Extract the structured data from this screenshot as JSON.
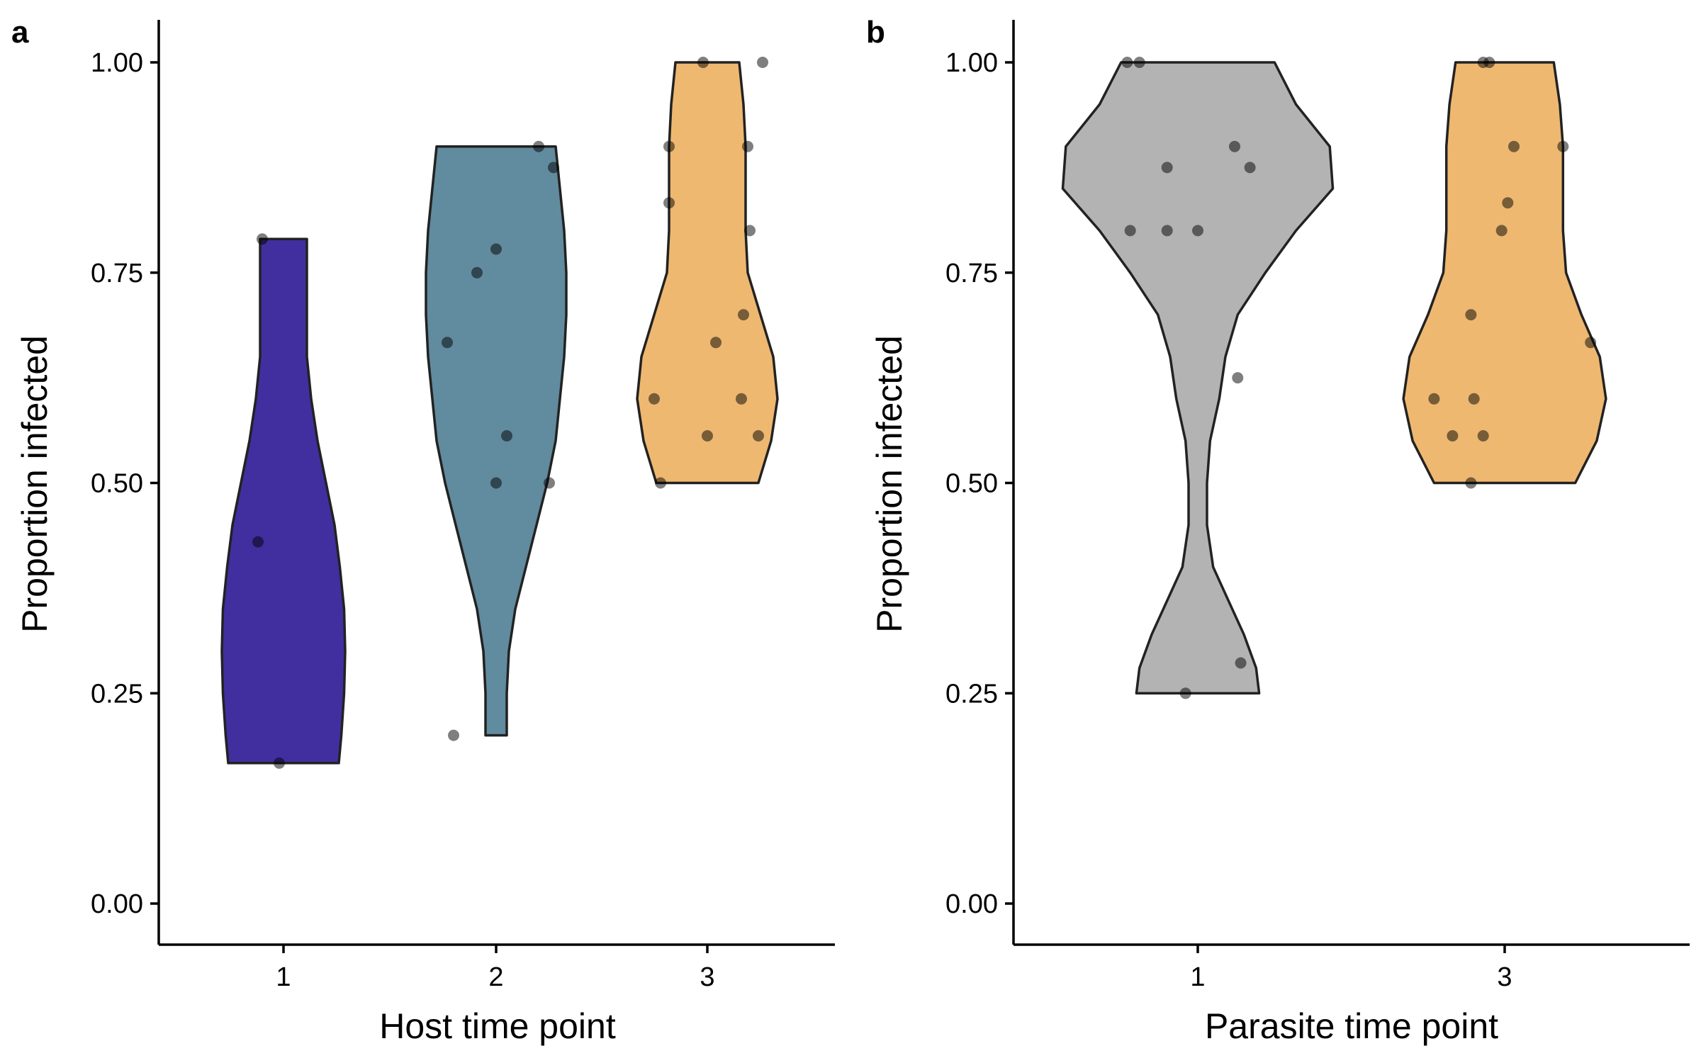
{
  "chart_data": [
    {
      "type": "violin",
      "panel_label": "a",
      "xlabel": "Host time point",
      "ylabel": "Proportion infected",
      "ylim": [
        0,
        1
      ],
      "yticks": [
        "0.00",
        "0.25",
        "0.50",
        "0.75",
        "1.00"
      ],
      "categories": [
        "1",
        "2",
        "3"
      ],
      "colors": [
        "#412fa0",
        "#618b9e",
        "#eeb871"
      ],
      "grid": false,
      "legend": "none",
      "groups": [
        {
          "category": "1",
          "values": [
            0.79,
            0.43,
            0.167
          ],
          "jitter": [
            -0.1,
            -0.12,
            -0.02
          ],
          "violin_profile": [
            [
              0.167,
              0.26
            ],
            [
              0.2,
              0.272
            ],
            [
              0.25,
              0.285
            ],
            [
              0.3,
              0.29
            ],
            [
              0.35,
              0.285
            ],
            [
              0.4,
              0.265
            ],
            [
              0.45,
              0.24
            ],
            [
              0.5,
              0.2
            ],
            [
              0.55,
              0.16
            ],
            [
              0.6,
              0.13
            ],
            [
              0.65,
              0.11
            ],
            [
              0.7,
              0.11
            ],
            [
              0.75,
              0.11
            ],
            [
              0.79,
              0.11
            ]
          ]
        },
        {
          "category": "2",
          "values": [
            0.9,
            0.875,
            0.778,
            0.75,
            0.667,
            0.556,
            0.5,
            0.5,
            0.2
          ],
          "jitter": [
            0.2,
            0.27,
            0.0,
            -0.09,
            -0.23,
            0.05,
            0.0,
            0.25,
            -0.2
          ],
          "violin_profile": [
            [
              0.2,
              0.05
            ],
            [
              0.25,
              0.05
            ],
            [
              0.3,
              0.06
            ],
            [
              0.35,
              0.09
            ],
            [
              0.4,
              0.14
            ],
            [
              0.45,
              0.19
            ],
            [
              0.5,
              0.24
            ],
            [
              0.55,
              0.28
            ],
            [
              0.6,
              0.3
            ],
            [
              0.65,
              0.32
            ],
            [
              0.7,
              0.33
            ],
            [
              0.75,
              0.33
            ],
            [
              0.8,
              0.32
            ],
            [
              0.85,
              0.3
            ],
            [
              0.9,
              0.28
            ]
          ]
        },
        {
          "category": "3",
          "values": [
            1.0,
            1.0,
            0.9,
            0.9,
            0.833,
            0.8,
            0.7,
            0.667,
            0.6,
            0.6,
            0.556,
            0.556,
            0.5
          ],
          "jitter": [
            -0.02,
            0.26,
            -0.18,
            0.19,
            -0.18,
            0.2,
            0.17,
            0.04,
            -0.25,
            0.16,
            0.0,
            0.24,
            -0.22
          ],
          "violin_profile": [
            [
              0.5,
              0.24
            ],
            [
              0.55,
              0.3
            ],
            [
              0.6,
              0.33
            ],
            [
              0.65,
              0.31
            ],
            [
              0.7,
              0.25
            ],
            [
              0.75,
              0.19
            ],
            [
              0.8,
              0.18
            ],
            [
              0.85,
              0.18
            ],
            [
              0.9,
              0.18
            ],
            [
              0.95,
              0.17
            ],
            [
              1.0,
              0.15
            ]
          ]
        }
      ]
    },
    {
      "type": "violin",
      "panel_label": "b",
      "xlabel": "Parasite time point",
      "ylabel": "Proportion infected",
      "ylim": [
        0,
        1
      ],
      "yticks": [
        "0.00",
        "0.25",
        "0.50",
        "0.75",
        "1.00"
      ],
      "categories": [
        "1",
        "3"
      ],
      "colors": [
        "#b3b3b3",
        "#eeb871"
      ],
      "grid": false,
      "legend": "none",
      "groups": [
        {
          "category": "1",
          "values": [
            1.0,
            1.0,
            0.9,
            0.875,
            0.875,
            0.8,
            0.8,
            0.8,
            0.625,
            0.286,
            0.25
          ],
          "jitter": [
            -0.23,
            -0.19,
            0.12,
            -0.1,
            0.17,
            -0.22,
            -0.1,
            0.0,
            0.13,
            0.14,
            -0.04
          ],
          "violin_profile": [
            [
              0.25,
              0.2
            ],
            [
              0.28,
              0.19
            ],
            [
              0.32,
              0.15
            ],
            [
              0.36,
              0.1
            ],
            [
              0.4,
              0.05
            ],
            [
              0.45,
              0.03
            ],
            [
              0.5,
              0.03
            ],
            [
              0.55,
              0.04
            ],
            [
              0.6,
              0.07
            ],
            [
              0.65,
              0.09
            ],
            [
              0.7,
              0.13
            ],
            [
              0.75,
              0.22
            ],
            [
              0.8,
              0.32
            ],
            [
              0.85,
              0.44
            ],
            [
              0.9,
              0.43
            ],
            [
              0.95,
              0.32
            ],
            [
              1.0,
              0.25
            ]
          ]
        },
        {
          "category": "3",
          "values": [
            1.0,
            1.0,
            0.9,
            0.9,
            0.833,
            0.8,
            0.7,
            0.667,
            0.6,
            0.6,
            0.556,
            0.556,
            0.5
          ],
          "jitter": [
            -0.07,
            -0.05,
            0.03,
            0.19,
            0.01,
            -0.01,
            -0.11,
            0.28,
            -0.23,
            -0.1,
            -0.17,
            -0.07,
            -0.11
          ],
          "violin_profile": [
            [
              0.5,
              0.23
            ],
            [
              0.55,
              0.3
            ],
            [
              0.6,
              0.33
            ],
            [
              0.65,
              0.31
            ],
            [
              0.7,
              0.25
            ],
            [
              0.75,
              0.2
            ],
            [
              0.8,
              0.19
            ],
            [
              0.85,
              0.19
            ],
            [
              0.9,
              0.19
            ],
            [
              0.95,
              0.18
            ],
            [
              1.0,
              0.16
            ]
          ]
        }
      ]
    }
  ]
}
